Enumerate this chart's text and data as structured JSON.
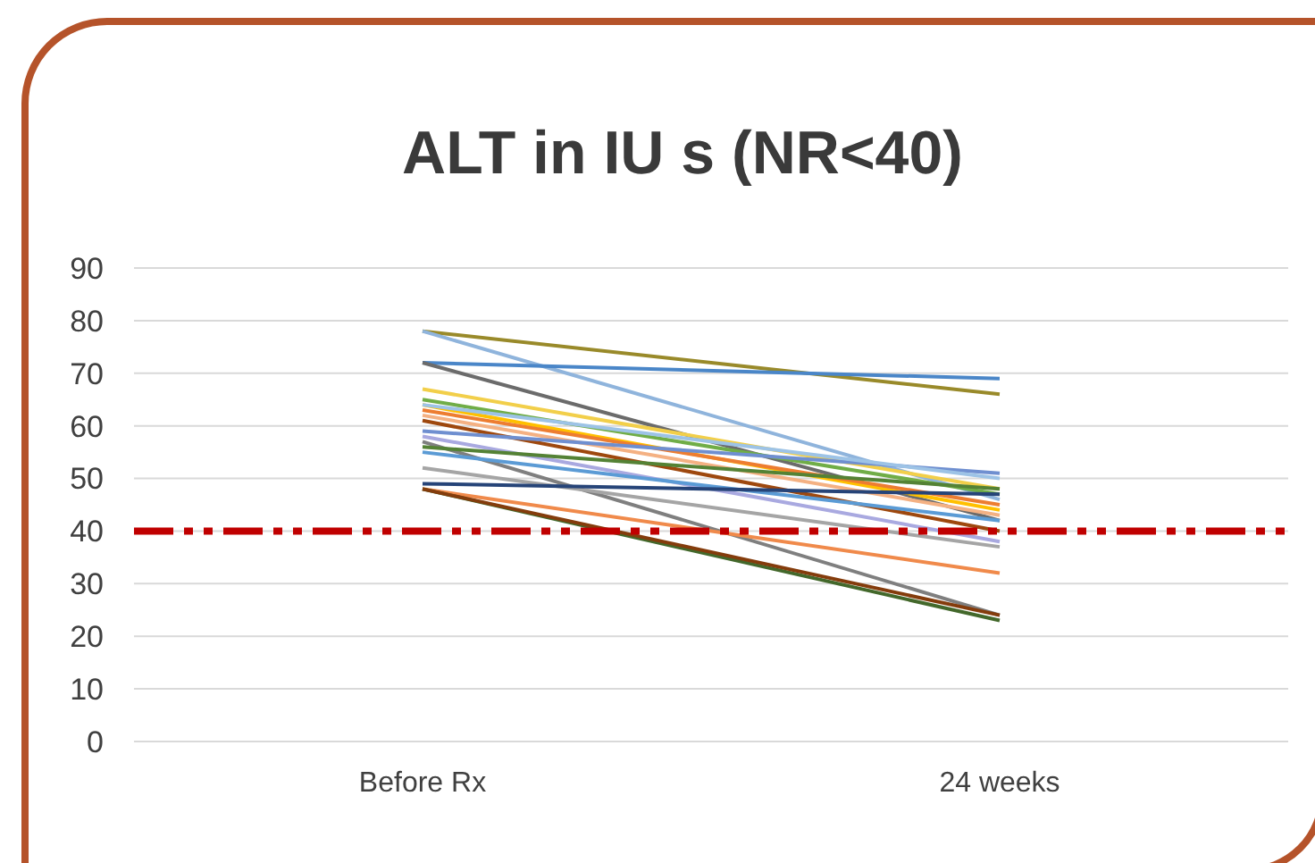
{
  "chart_data": {
    "type": "line",
    "title": "ALT in IU s (NR<40)",
    "categories": [
      "Before Rx",
      "24 weeks"
    ],
    "series": [
      {
        "color": "#998a2a",
        "values": [
          78,
          66
        ]
      },
      {
        "color": "#8fb4dc",
        "values": [
          78,
          46
        ]
      },
      {
        "color": "#4a86c8",
        "values": [
          72,
          69
        ]
      },
      {
        "color": "#6b6b6b",
        "values": [
          72,
          42
        ]
      },
      {
        "color": "#f2cf4a",
        "values": [
          67,
          48
        ]
      },
      {
        "color": "#70ad47",
        "values": [
          65,
          47
        ]
      },
      {
        "color": "#ffc000",
        "values": [
          64,
          44
        ]
      },
      {
        "color": "#ed7d31",
        "values": [
          63,
          45
        ]
      },
      {
        "color": "#f4b183",
        "values": [
          62,
          43
        ]
      },
      {
        "color": "#9e480e",
        "values": [
          61,
          40
        ]
      },
      {
        "color": "#6f8fd0",
        "values": [
          59,
          51
        ]
      },
      {
        "color": "#a9a9e0",
        "values": [
          58,
          38
        ]
      },
      {
        "color": "#7f7f7f",
        "values": [
          57,
          24
        ]
      },
      {
        "color": "#548235",
        "values": [
          56,
          48
        ]
      },
      {
        "color": "#5b9bd5",
        "values": [
          55,
          42
        ]
      },
      {
        "color": "#a5a5a5",
        "values": [
          52,
          37
        ]
      },
      {
        "color": "#264478",
        "values": [
          49,
          47
        ]
      },
      {
        "color": "#f08a4b",
        "values": [
          48,
          32
        ]
      },
      {
        "color": "#43682b",
        "values": [
          48,
          23
        ]
      },
      {
        "color": "#843c0c",
        "values": [
          48,
          24
        ]
      },
      {
        "color": "#9dc3e6",
        "values": [
          64,
          50
        ]
      }
    ],
    "ylim": [
      0,
      90
    ],
    "yticks": [
      0,
      10,
      20,
      30,
      40,
      50,
      60,
      70,
      80,
      90
    ],
    "grid": "y",
    "ref_lines": [
      {
        "axis": "y",
        "value": 40,
        "color": "#c00000",
        "line_style": "dashed"
      }
    ]
  }
}
